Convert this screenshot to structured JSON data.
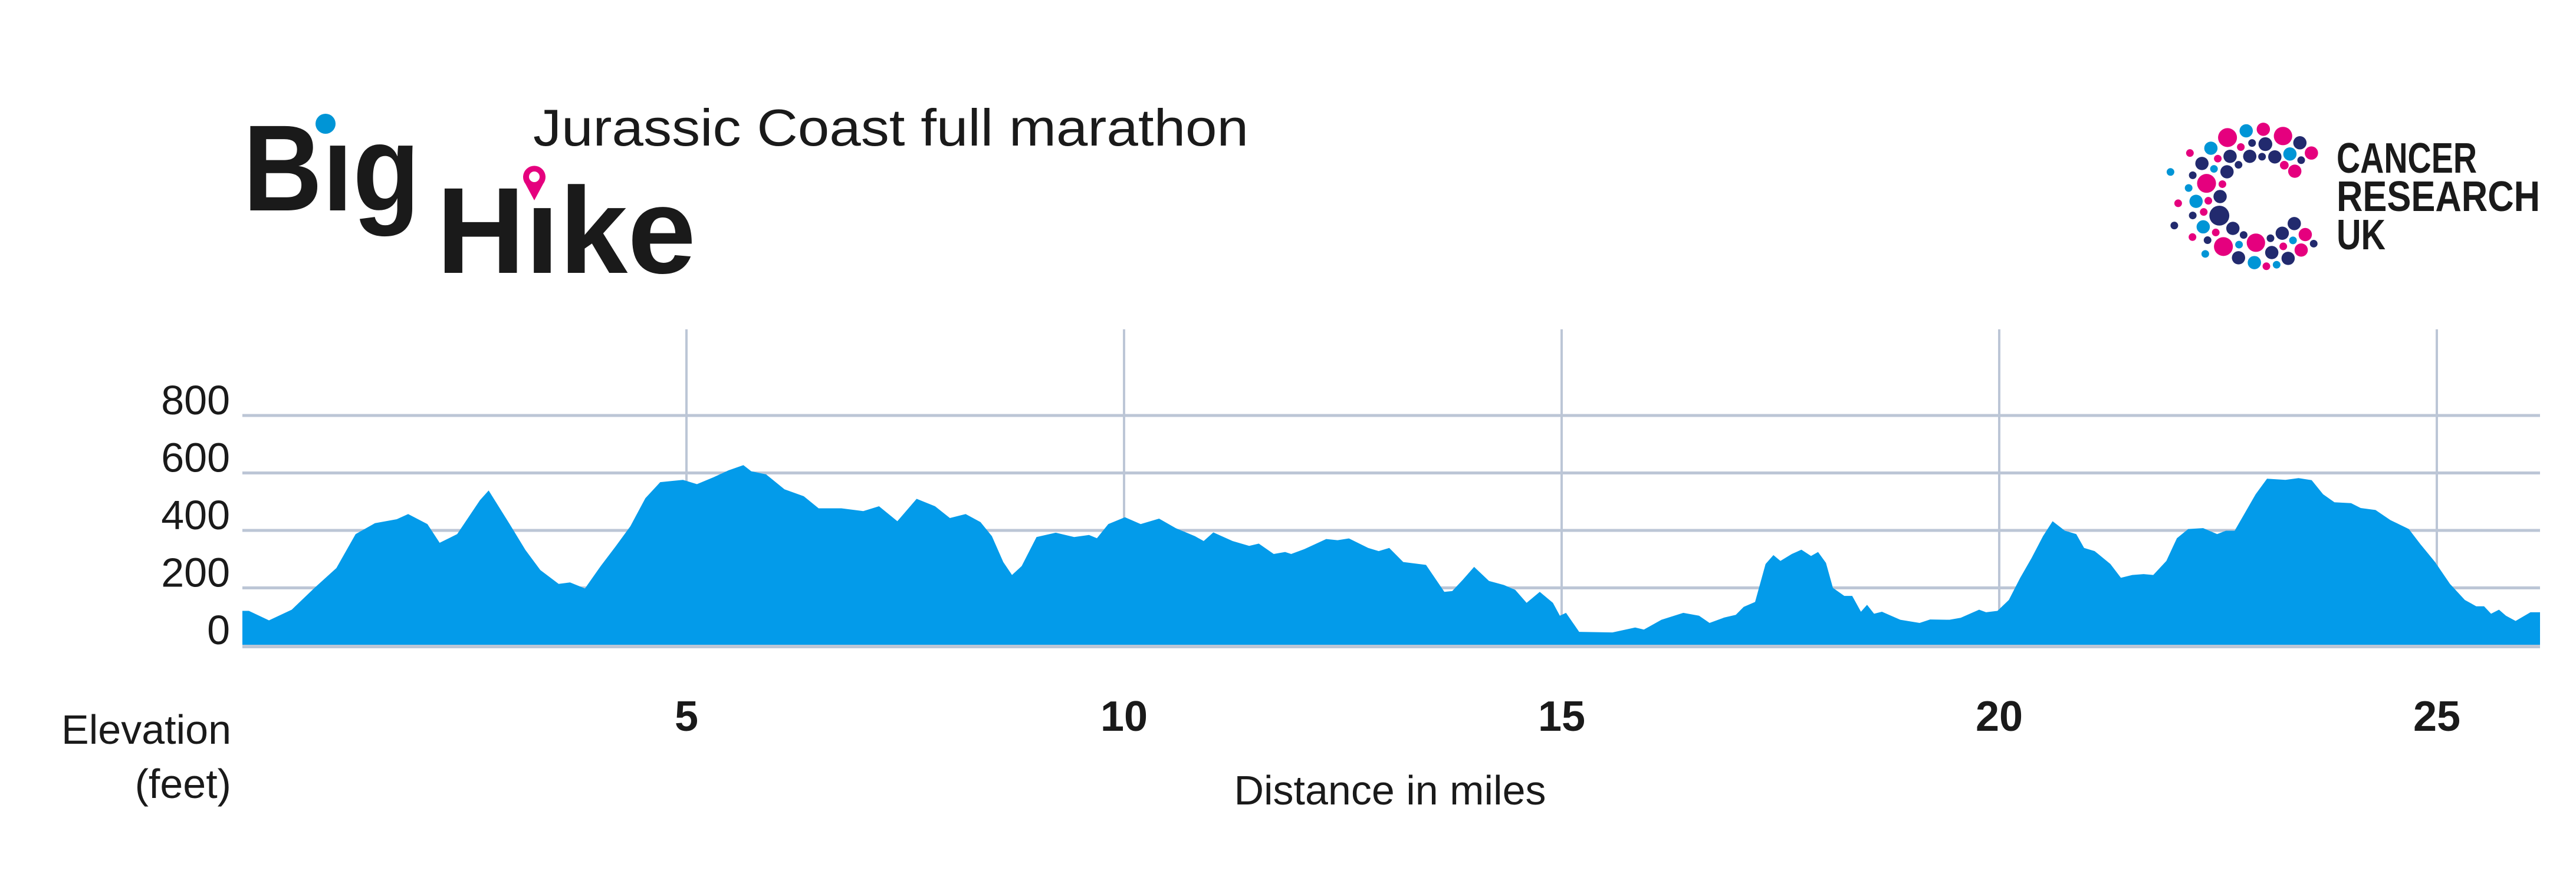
{
  "header": {
    "title": "Jurassic Coast full marathon",
    "logo_left": {
      "line1": "Big",
      "line2": "Hike"
    },
    "logo_right": {
      "line1": "CANCER",
      "line2": "RESEARCH",
      "line3": "UK"
    }
  },
  "colors": {
    "fill": "#039BEA",
    "grid": "#BCC6D6",
    "pink": "#E5007E",
    "light_blue": "#0095D6",
    "navy": "#222A6E",
    "text": "#1a1a1a"
  },
  "chart_data": {
    "type": "area",
    "title": "Jurassic Coast full marathon",
    "xlabel": "Distance in miles",
    "ylabel": "Elevation (feet)",
    "xlim": [
      0,
      26.2
    ],
    "ylim": [
      0,
      1100
    ],
    "xticks": [
      5,
      10,
      15,
      20,
      25
    ],
    "yticks": [
      0,
      200,
      400,
      600,
      800
    ],
    "grid": true,
    "legend": "none",
    "x": [
      0,
      0.23,
      0.49,
      0.75,
      1.0,
      1.22,
      1.44,
      1.69,
      1.82,
      2.04,
      2.18,
      2.38,
      2.64,
      2.74,
      2.98,
      3.16,
      3.33,
      3.54,
      3.67,
      3.84,
      4.02,
      4.19,
      4.36,
      4.53,
      4.7,
      4.96,
      5.12,
      5.31,
      5.48,
      5.65,
      5.74,
      5.91,
      6.12,
      6.34,
      6.51,
      6.77,
      7.02,
      7.2,
      7.41,
      7.63,
      7.84,
      8.01,
      8.19,
      8.36,
      8.49,
      8.62,
      8.72,
      8.83,
      9.0,
      9.22,
      9.43,
      9.6,
      9.69,
      9.82,
      10.01,
      10.19,
      10.4,
      10.59,
      10.81,
      10.91,
      11.02,
      11.24,
      11.43,
      11.54,
      11.71,
      11.84,
      11.91,
      12.06,
      12.31,
      12.44,
      12.57,
      12.79,
      12.91,
      13.03,
      13.19,
      13.45,
      13.66,
      13.75,
      13.87,
      14.0,
      14.17,
      14.34,
      14.47,
      14.6,
      14.75,
      14.9,
      14.98,
      15.05,
      15.2,
      15.58,
      15.84,
      15.94,
      16.14,
      16.39,
      16.57,
      16.69,
      16.86,
      16.99,
      17.08,
      17.21,
      17.33,
      17.42,
      17.5,
      17.63,
      17.74,
      17.85,
      17.93,
      18.02,
      18.1,
      18.23,
      18.32,
      18.42,
      18.49,
      18.57,
      18.66,
      18.87,
      19.09,
      19.21,
      19.43,
      19.56,
      19.77,
      19.85,
      19.98,
      20.11,
      20.24,
      20.37,
      20.5,
      20.61,
      20.75,
      20.88,
      20.97,
      21.09,
      21.27,
      21.39,
      21.52,
      21.65,
      21.76,
      21.91,
      22.03,
      22.16,
      22.33,
      22.49,
      22.59,
      22.69,
      22.8,
      22.93,
      23.06,
      23.27,
      23.42,
      23.57,
      23.7,
      23.83,
      24.02,
      24.13,
      24.3,
      24.47,
      24.68,
      24.81,
      24.98,
      25.15,
      25.32,
      25.45,
      25.54,
      25.62,
      25.71,
      25.79,
      25.9,
      26.07,
      26.2
    ],
    "y": [
      120,
      87,
      124,
      200,
      269,
      387,
      425,
      439,
      457,
      422,
      357,
      387,
      505,
      539,
      422,
      332,
      262,
      214,
      219,
      198,
      276,
      344,
      415,
      512,
      568,
      576,
      561,
      585,
      609,
      627,
      606,
      595,
      543,
      519,
      477,
      477,
      467,
      484,
      432,
      510,
      484,
      443,
      457,
      429,
      380,
      290,
      245,
      276,
      377,
      392,
      377,
      384,
      373,
      422,
      446,
      422,
      441,
      408,
      380,
      363,
      393,
      363,
      346,
      354,
      318,
      325,
      318,
      335,
      370,
      366,
      372,
      339,
      328,
      339,
      290,
      280,
      186,
      189,
      228,
      273,
      224,
      210,
      193,
      148,
      186,
      148,
      103,
      113,
      47,
      45,
      62,
      55,
      89,
      113,
      103,
      78,
      97,
      106,
      134,
      151,
      283,
      314,
      294,
      318,
      333,
      311,
      325,
      287,
      200,
      172,
      172,
      117,
      141,
      110,
      117,
      89,
      78,
      90,
      89,
      96,
      124,
      115,
      120,
      158,
      235,
      304,
      380,
      432,
      399,
      387,
      339,
      328,
      283,
      235,
      245,
      248,
      245,
      294,
      373,
      405,
      408,
      387,
      399,
      399,
      457,
      526,
      580,
      576,
      582,
      575,
      526,
      498,
      495,
      478,
      471,
      436,
      405,
      353,
      290,
      214,
      158,
      136,
      136,
      110,
      124,
      103,
      85,
      115,
      115
    ]
  }
}
